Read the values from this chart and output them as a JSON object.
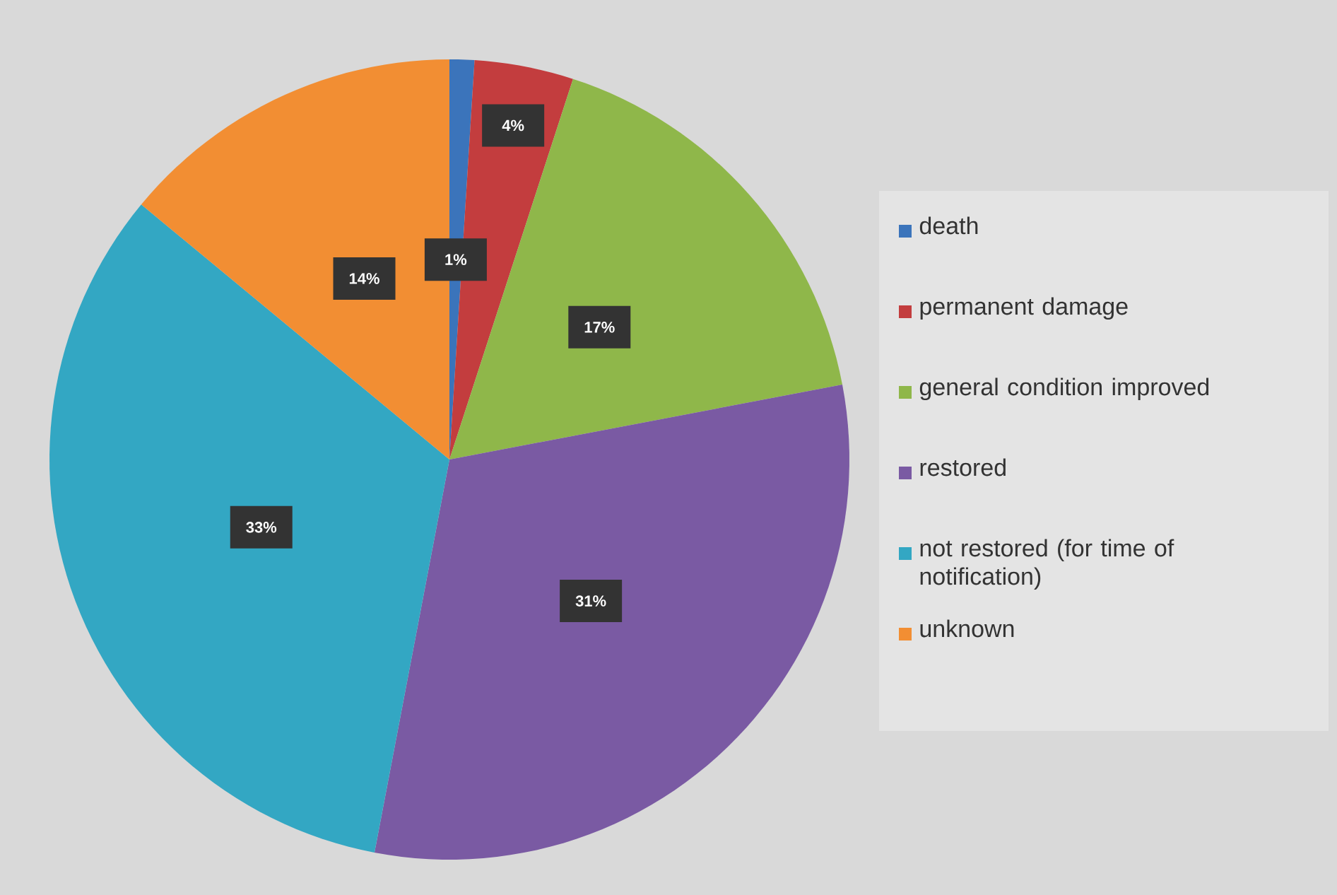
{
  "chart_data": {
    "type": "pie",
    "categories": [
      "death",
      "permanent damage",
      "general condition improved",
      "restored",
      "not restored (for time of notification)",
      "unknown"
    ],
    "values": [
      1,
      4,
      17,
      31,
      33,
      14
    ],
    "colors": [
      "#3b74bb",
      "#c33d3e",
      "#8fb74a",
      "#7a5aa3",
      "#33a7c3",
      "#f28e33"
    ],
    "value_labels": [
      "1%",
      "4%",
      "17%",
      "31%",
      "33%",
      "14%"
    ],
    "legend": "right"
  }
}
